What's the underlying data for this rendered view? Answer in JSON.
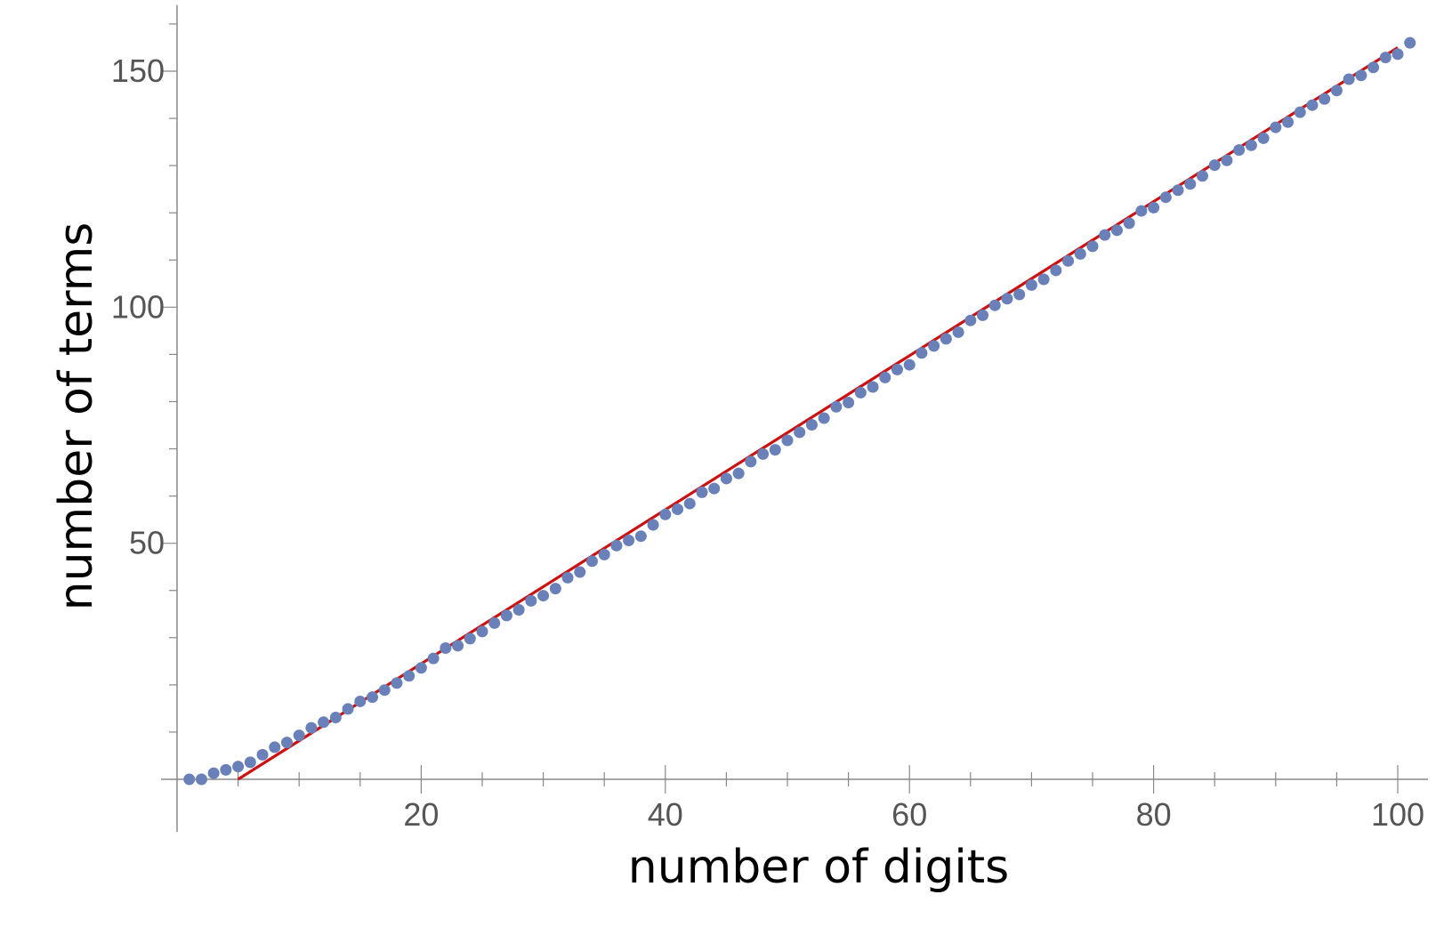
{
  "chart_data": {
    "type": "scatter",
    "title": "",
    "xlabel": "number of digits",
    "ylabel": "number of terms",
    "xlim": [
      0,
      102
    ],
    "ylim": [
      -1,
      164
    ],
    "x_ticks": [
      20,
      40,
      60,
      80,
      100
    ],
    "y_ticks": [
      50,
      100,
      150
    ],
    "grid": false,
    "legend": "none",
    "series": [
      {
        "type": "scatter",
        "color": "#6a80b9",
        "x": [
          1,
          2,
          3,
          4,
          5,
          6,
          7,
          8,
          9,
          10,
          11,
          12,
          13,
          14,
          15,
          16,
          17,
          18,
          19,
          20,
          21,
          22,
          23,
          24,
          25,
          26,
          27,
          28,
          29,
          30,
          31,
          32,
          33,
          34,
          35,
          36,
          37,
          38,
          39,
          40,
          41,
          42,
          43,
          44,
          45,
          46,
          47,
          48,
          49,
          50,
          51,
          52,
          53,
          54,
          55,
          56,
          57,
          58,
          59,
          60,
          61,
          62,
          63,
          64,
          65,
          66,
          67,
          68,
          69,
          70,
          71,
          72,
          73,
          74,
          75,
          76,
          77,
          78,
          79,
          80,
          81,
          82,
          83,
          84,
          85,
          86,
          87,
          88,
          89,
          90,
          91,
          92,
          93,
          94,
          95,
          96,
          97,
          98,
          99,
          100,
          101
        ],
        "y": [
          0,
          0,
          1.3,
          2,
          2.7,
          3.6,
          5.2,
          6.8,
          7.8,
          9.3,
          10.9,
          12.1,
          13.1,
          14.9,
          16.5,
          17.4,
          18.9,
          20.4,
          21.9,
          23.6,
          25.6,
          27.8,
          28.3,
          29.8,
          31.3,
          33.1,
          34.7,
          35.9,
          37.8,
          38.9,
          40.4,
          42.7,
          43.9,
          46.2,
          47.6,
          49.5,
          50.6,
          51.5,
          53.9,
          56.1,
          57.2,
          58.4,
          60.8,
          61.6,
          63.7,
          64.8,
          67.3,
          68.9,
          69.8,
          71.8,
          73.5,
          75.1,
          76.5,
          78.9,
          79.8,
          81.9,
          83.1,
          85.1,
          86.8,
          87.8,
          90.3,
          91.8,
          93.3,
          94.7,
          97.2,
          98.3,
          100.4,
          101.8,
          102.7,
          104.7,
          105.9,
          107.8,
          109.8,
          111.3,
          112.9,
          115.3,
          116.3,
          117.8,
          120.4,
          121.1,
          123.3,
          124.8,
          126.1,
          127.8,
          130.1,
          131.1,
          133.3,
          134.3,
          135.8,
          138.1,
          139.2,
          141.3,
          142.8,
          144.1,
          145.9,
          148.3,
          149.1,
          150.8,
          152.9,
          153.6,
          156
        ]
      },
      {
        "type": "line",
        "color": "#cc1111",
        "x": [
          5,
          100
        ],
        "y": [
          0,
          155
        ]
      }
    ]
  }
}
